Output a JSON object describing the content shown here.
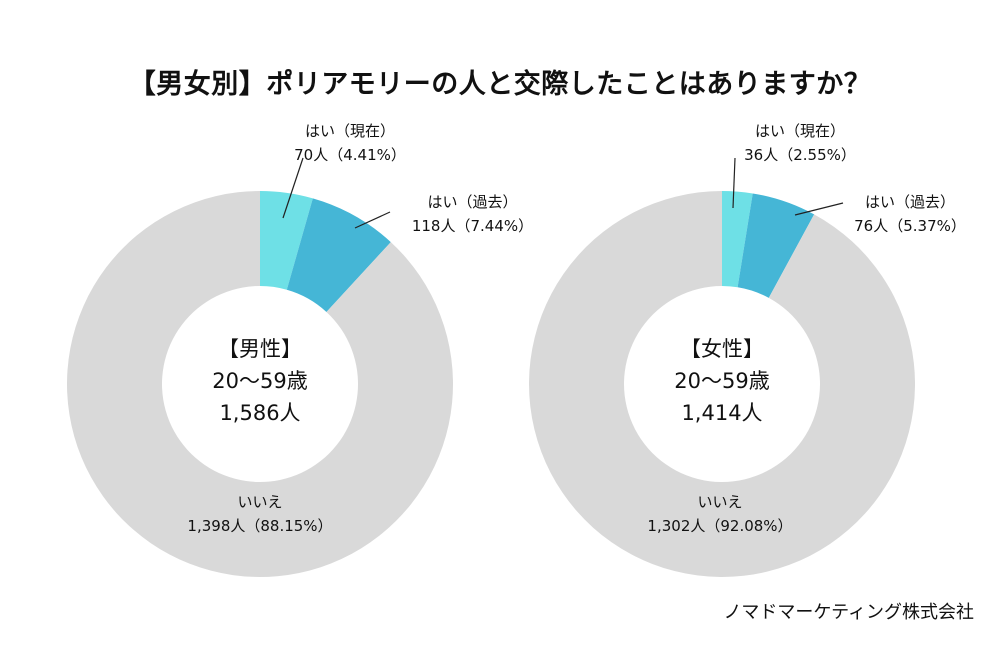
{
  "title": "【男女別】ポリアモリーの人と交際したことはありますか？",
  "credit": "ノマドマーケティング株式会社",
  "colors": {
    "current": "#6ee0e6",
    "past": "#45b6d6",
    "no": "#d9d9d9",
    "leader": "#222222"
  },
  "chart_data": [
    {
      "type": "pie",
      "donut": true,
      "center_label": {
        "group": "【男性】",
        "age": "20〜59歳",
        "total": "1,586人"
      },
      "categories": [
        "はい（現在）",
        "はい（過去）",
        "いいえ"
      ],
      "values": [
        70,
        118,
        1398
      ],
      "percents": [
        4.41,
        7.44,
        88.15
      ],
      "labels": [
        {
          "name": "はい（現在）",
          "value": "70人（4.41%）"
        },
        {
          "name": "はい（過去）",
          "value": "118人（7.44%）"
        },
        {
          "name": "いいえ",
          "value": "1,398人（88.15%）"
        }
      ]
    },
    {
      "type": "pie",
      "donut": true,
      "center_label": {
        "group": "【女性】",
        "age": "20〜59歳",
        "total": "1,414人"
      },
      "categories": [
        "はい（現在）",
        "はい（過去）",
        "いいえ"
      ],
      "values": [
        36,
        76,
        1302
      ],
      "percents": [
        2.55,
        5.37,
        92.08
      ],
      "labels": [
        {
          "name": "はい（現在）",
          "value": "36人（2.55%）"
        },
        {
          "name": "はい（過去）",
          "value": "76人（5.37%）"
        },
        {
          "name": "いいえ",
          "value": "1,302人（92.08%）"
        }
      ]
    }
  ]
}
